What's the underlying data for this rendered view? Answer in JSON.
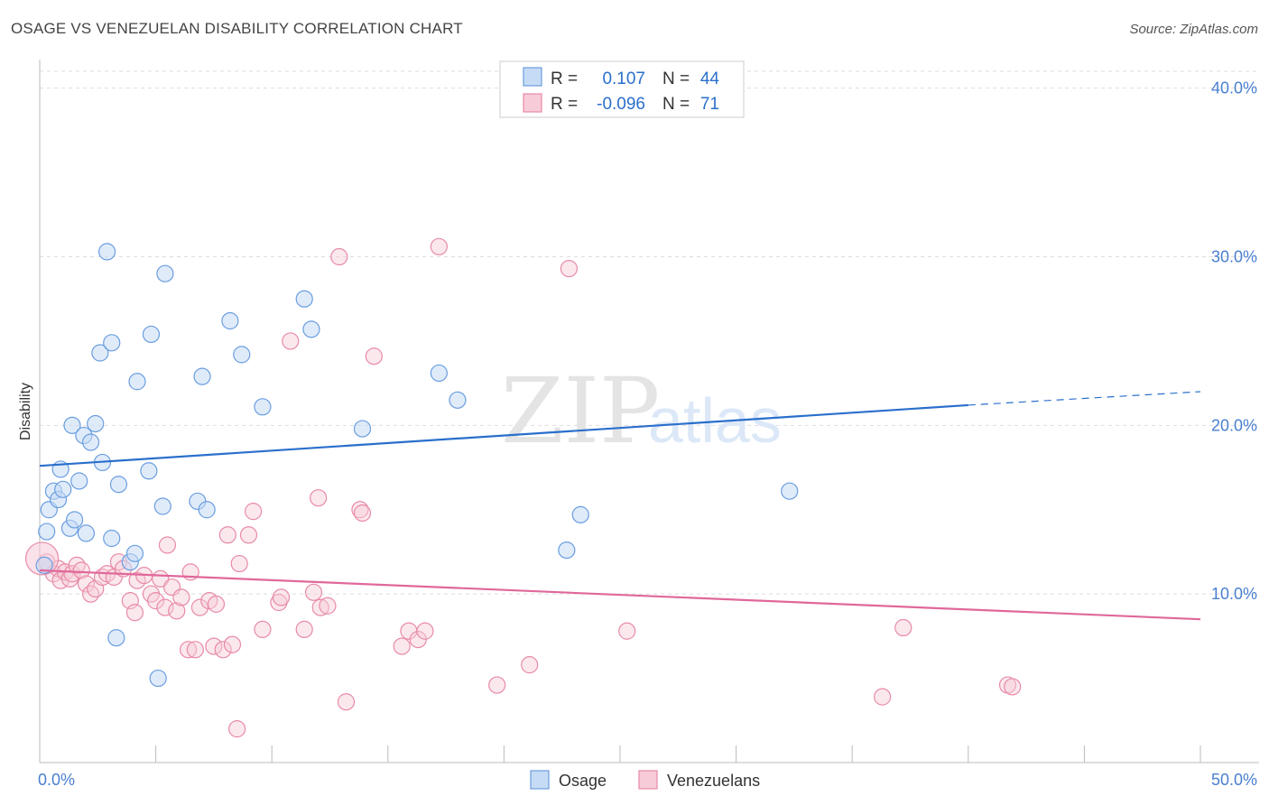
{
  "header": {
    "title": "OSAGE VS VENEZUELAN DISABILITY CORRELATION CHART",
    "source": "Source: ZipAtlas.com"
  },
  "colors": {
    "osage": "#6a9ee0",
    "osage_fill": "#c6dbf5",
    "osage_line": "#2a6fcc",
    "venezuelan": "#e88aa8",
    "venezuelan_fill": "#f7cbd8",
    "venezuelan_line": "#e0689a",
    "axis_text": "#4a7fd0",
    "grid": "#dddddd"
  },
  "legend": {
    "rows": [
      {
        "r_label": "R =",
        "r_value": "0.107",
        "n_label": "N =",
        "n_value": "44"
      },
      {
        "r_label": "R =",
        "r_value": "-0.096",
        "n_label": "N =",
        "n_value": "71"
      }
    ]
  },
  "bottom_legend": [
    "Osage",
    "Venezuelans"
  ],
  "chart_data": {
    "type": "scatter",
    "ylabel": "Disability",
    "x_tick_labels": [
      "0.0%",
      "50.0%"
    ],
    "y_tick_labels": [
      "10.0%",
      "20.0%",
      "30.0%",
      "40.0%"
    ],
    "y_ticks": [
      10,
      20,
      30,
      40
    ],
    "xlim": [
      0,
      50
    ],
    "ylim": [
      0,
      41
    ],
    "grid": true,
    "watermark": "ZIPatlas",
    "series": [
      {
        "name": "Osage",
        "trend": {
          "x0": 0,
          "y0": 17.6,
          "x1": 40,
          "y1": 21.2,
          "dash_x1": 50,
          "dash_y1": 22.0
        },
        "points": [
          [
            0.2,
            11.7
          ],
          [
            0.3,
            13.7
          ],
          [
            0.4,
            15.0
          ],
          [
            0.6,
            16.1
          ],
          [
            0.8,
            15.6
          ],
          [
            0.9,
            17.4
          ],
          [
            1.0,
            16.2
          ],
          [
            1.3,
            13.9
          ],
          [
            1.4,
            20.0
          ],
          [
            1.5,
            14.4
          ],
          [
            1.7,
            16.7
          ],
          [
            1.9,
            19.4
          ],
          [
            2.0,
            13.6
          ],
          [
            2.2,
            19.0
          ],
          [
            2.4,
            20.1
          ],
          [
            2.6,
            24.3
          ],
          [
            2.7,
            17.8
          ],
          [
            2.9,
            30.3
          ],
          [
            3.1,
            24.9
          ],
          [
            3.1,
            13.3
          ],
          [
            3.3,
            7.4
          ],
          [
            3.4,
            16.5
          ],
          [
            3.9,
            11.9
          ],
          [
            4.1,
            12.4
          ],
          [
            4.2,
            22.6
          ],
          [
            4.7,
            17.3
          ],
          [
            4.8,
            25.4
          ],
          [
            5.1,
            5.0
          ],
          [
            5.3,
            15.2
          ],
          [
            5.4,
            29.0
          ],
          [
            6.8,
            15.5
          ],
          [
            7.0,
            22.9
          ],
          [
            7.2,
            15.0
          ],
          [
            8.2,
            26.2
          ],
          [
            8.7,
            24.2
          ],
          [
            9.6,
            21.1
          ],
          [
            11.4,
            27.5
          ],
          [
            11.7,
            25.7
          ],
          [
            13.9,
            19.8
          ],
          [
            17.2,
            23.1
          ],
          [
            18.0,
            21.5
          ],
          [
            22.7,
            12.6
          ],
          [
            23.3,
            14.7
          ],
          [
            32.3,
            16.1
          ]
        ]
      },
      {
        "name": "Venezuelans",
        "trend": {
          "x0": 0,
          "y0": 11.4,
          "x1": 50,
          "y1": 8.5
        },
        "points": [
          [
            0.3,
            11.9
          ],
          [
            0.6,
            11.2
          ],
          [
            0.8,
            11.5
          ],
          [
            0.9,
            10.8
          ],
          [
            1.1,
            11.3
          ],
          [
            1.3,
            10.9
          ],
          [
            1.4,
            11.2
          ],
          [
            1.6,
            11.7
          ],
          [
            1.8,
            11.4
          ],
          [
            2.0,
            10.6
          ],
          [
            2.2,
            10.0
          ],
          [
            2.4,
            10.3
          ],
          [
            2.7,
            11.0
          ],
          [
            2.9,
            11.2
          ],
          [
            3.2,
            11.0
          ],
          [
            3.4,
            11.9
          ],
          [
            3.6,
            11.5
          ],
          [
            3.9,
            9.6
          ],
          [
            4.1,
            8.9
          ],
          [
            4.2,
            10.8
          ],
          [
            4.5,
            11.1
          ],
          [
            4.8,
            10.0
          ],
          [
            5.0,
            9.6
          ],
          [
            5.2,
            10.9
          ],
          [
            5.4,
            9.2
          ],
          [
            5.5,
            12.9
          ],
          [
            5.7,
            10.4
          ],
          [
            5.9,
            9.0
          ],
          [
            6.1,
            9.8
          ],
          [
            6.4,
            6.7
          ],
          [
            6.5,
            11.3
          ],
          [
            6.7,
            6.7
          ],
          [
            6.9,
            9.2
          ],
          [
            7.3,
            9.6
          ],
          [
            7.5,
            6.9
          ],
          [
            7.6,
            9.4
          ],
          [
            7.9,
            6.7
          ],
          [
            8.1,
            13.5
          ],
          [
            8.3,
            7.0
          ],
          [
            8.5,
            2.0
          ],
          [
            8.6,
            11.8
          ],
          [
            9.0,
            13.5
          ],
          [
            9.2,
            14.9
          ],
          [
            9.6,
            7.9
          ],
          [
            10.3,
            9.5
          ],
          [
            10.4,
            9.8
          ],
          [
            10.8,
            25.0
          ],
          [
            11.4,
            7.9
          ],
          [
            11.8,
            10.1
          ],
          [
            12.0,
            15.7
          ],
          [
            12.1,
            9.2
          ],
          [
            12.4,
            9.3
          ],
          [
            12.9,
            30.0
          ],
          [
            13.2,
            3.6
          ],
          [
            13.8,
            15.0
          ],
          [
            13.9,
            14.8
          ],
          [
            14.4,
            24.1
          ],
          [
            15.6,
            6.9
          ],
          [
            15.9,
            7.8
          ],
          [
            16.3,
            7.3
          ],
          [
            16.6,
            7.8
          ],
          [
            17.2,
            30.6
          ],
          [
            19.7,
            4.6
          ],
          [
            21.1,
            5.8
          ],
          [
            22.8,
            29.3
          ],
          [
            25.3,
            7.8
          ],
          [
            36.3,
            3.9
          ],
          [
            37.2,
            8.0
          ],
          [
            41.7,
            4.6
          ],
          [
            41.9,
            4.5
          ],
          [
            0.1,
            12.1
          ]
        ]
      }
    ]
  }
}
